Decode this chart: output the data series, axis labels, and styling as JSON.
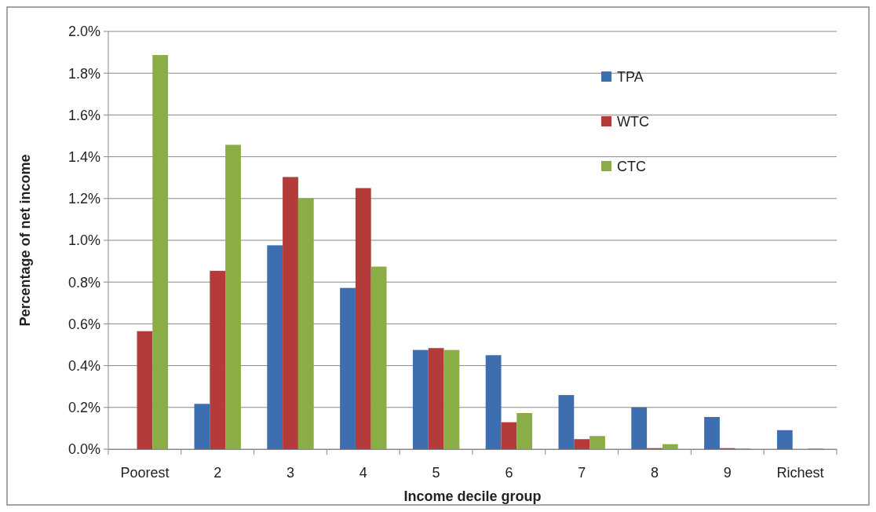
{
  "chart_data": {
    "type": "bar",
    "xlabel": "Income decile group",
    "ylabel": "Percentage of net income",
    "categories": [
      "Poorest",
      "2",
      "3",
      "4",
      "5",
      "6",
      "7",
      "8",
      "9",
      "Richest"
    ],
    "series": [
      {
        "name": "TPA",
        "color": "#3d6eb0",
        "values": [
          0,
          0.217,
          0.976,
          0.772,
          0.475,
          0.45,
          0.259,
          0.2,
          0.154,
          0.091
        ]
      },
      {
        "name": "WTC",
        "color": "#b33c3a",
        "values": [
          0.565,
          0.854,
          1.303,
          1.25,
          0.484,
          0.129,
          0.048,
          0.005,
          0.005,
          0
        ]
      },
      {
        "name": "CTC",
        "color": "#8aad46",
        "values": [
          1.887,
          1.457,
          1.201,
          0.874,
          0.475,
          0.173,
          0.063,
          0.024,
          0.004,
          0.004
        ]
      }
    ],
    "ylim": [
      0,
      2
    ],
    "yticks": [
      {
        "value": 0,
        "label": "0.0%"
      },
      {
        "value": 0.2,
        "label": "0.2%"
      },
      {
        "value": 0.4,
        "label": "0.4%"
      },
      {
        "value": 0.6,
        "label": "0.6%"
      },
      {
        "value": 0.8,
        "label": "0.8%"
      },
      {
        "value": 1,
        "label": "1.0%"
      },
      {
        "value": 1.2,
        "label": "1.2%"
      },
      {
        "value": 1.4,
        "label": "1.4%"
      },
      {
        "value": 1.6,
        "label": "1.6%"
      },
      {
        "value": 1.8,
        "label": "1.8%"
      },
      {
        "value": 2,
        "label": "2.0%"
      }
    ],
    "grid": "y",
    "legend": "top right"
  }
}
